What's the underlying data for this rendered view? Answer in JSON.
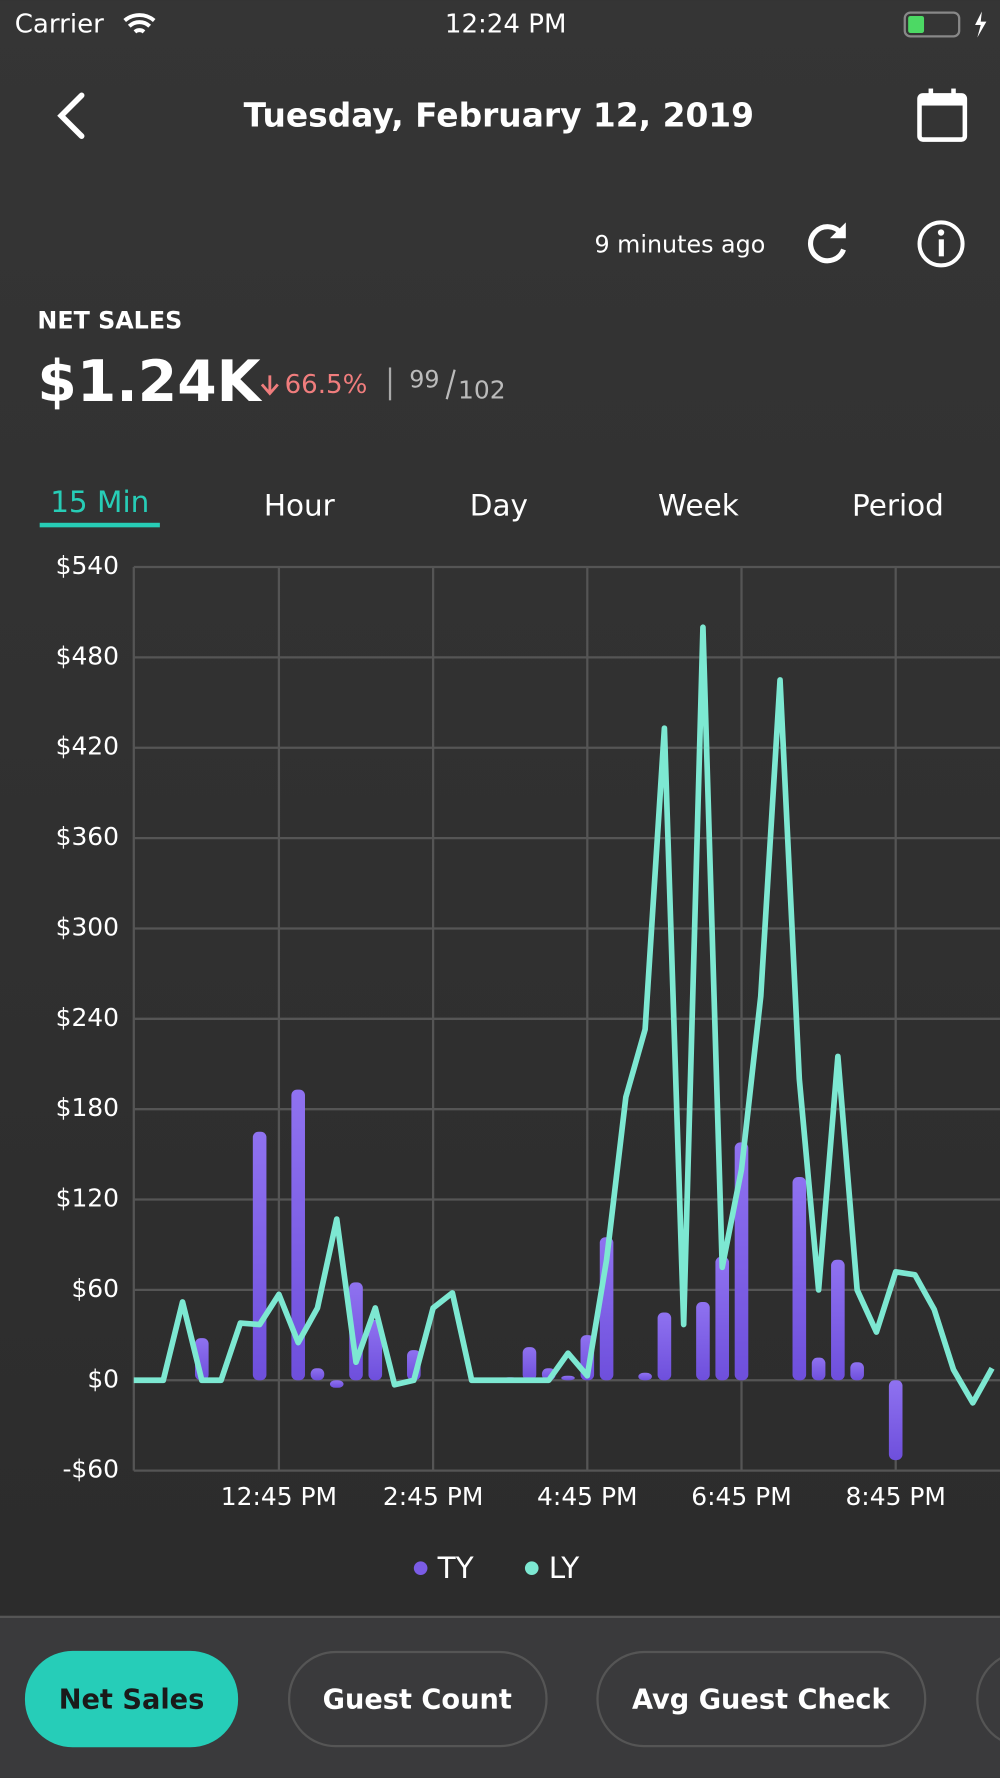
{
  "status_bar": {
    "carrier": "Carrier",
    "time": "12:24 PM"
  },
  "header": {
    "title": "Tuesday, February 12, 2019"
  },
  "updated": "9 minutes ago",
  "summary": {
    "label": "NET SALES",
    "value": "$1.24K",
    "change": "66.5%",
    "count": "99",
    "count_total": "102"
  },
  "tabs": [
    "15 Min",
    "Hour",
    "Day",
    "Week",
    "Period"
  ],
  "chart_data": {
    "type": "combo",
    "categories": [
      null,
      null,
      null,
      null,
      null,
      null,
      null,
      null,
      "12:45 PM",
      null,
      null,
      null,
      null,
      null,
      null,
      null,
      "2:45 PM",
      null,
      null,
      null,
      null,
      null,
      null,
      null,
      "4:45 PM",
      null,
      null,
      null,
      null,
      null,
      null,
      null,
      "6:45 PM",
      null,
      null,
      null,
      null,
      null,
      null,
      null,
      "8:45 PM",
      null,
      null,
      null,
      null,
      null
    ],
    "series": [
      {
        "name": "TY",
        "type": "bar",
        "color": "#7b5ce6",
        "values": [
          null,
          null,
          null,
          null,
          28,
          null,
          null,
          165,
          null,
          193,
          8,
          -5,
          65,
          40,
          null,
          20,
          null,
          null,
          null,
          null,
          2,
          22,
          8,
          3,
          30,
          95,
          null,
          5,
          45,
          null,
          52,
          82,
          158,
          null,
          null,
          135,
          15,
          80,
          12,
          null,
          -53,
          null,
          null,
          null,
          null,
          null
        ]
      },
      {
        "name": "LY",
        "type": "line",
        "color": "#7de8d2",
        "values": [
          0,
          0,
          0,
          52,
          0,
          0,
          38,
          37,
          57,
          25,
          48,
          107,
          12,
          48,
          -3,
          0,
          48,
          58,
          0,
          0,
          0,
          0,
          0,
          18,
          3,
          80,
          188,
          233,
          433,
          37,
          500,
          75,
          140,
          255,
          465,
          200,
          60,
          215,
          60,
          32,
          72,
          70,
          47,
          7,
          -15,
          8
        ]
      }
    ],
    "ylim": [
      -60,
      540
    ],
    "yticks": [
      {
        "value": -60,
        "label": "-$60"
      },
      {
        "value": 0,
        "label": "$0"
      },
      {
        "value": 60,
        "label": "$60"
      },
      {
        "value": 120,
        "label": "$120"
      },
      {
        "value": 180,
        "label": "$180"
      },
      {
        "value": 240,
        "label": "$240"
      },
      {
        "value": 300,
        "label": "$300"
      },
      {
        "value": 360,
        "label": "$360"
      },
      {
        "value": 420,
        "label": "$420"
      },
      {
        "value": 480,
        "label": "$480"
      },
      {
        "value": 540,
        "label": "$540"
      }
    ],
    "grid": true
  },
  "buttons": [
    "Net Sales",
    "Guest Count",
    "Avg Guest Check"
  ]
}
